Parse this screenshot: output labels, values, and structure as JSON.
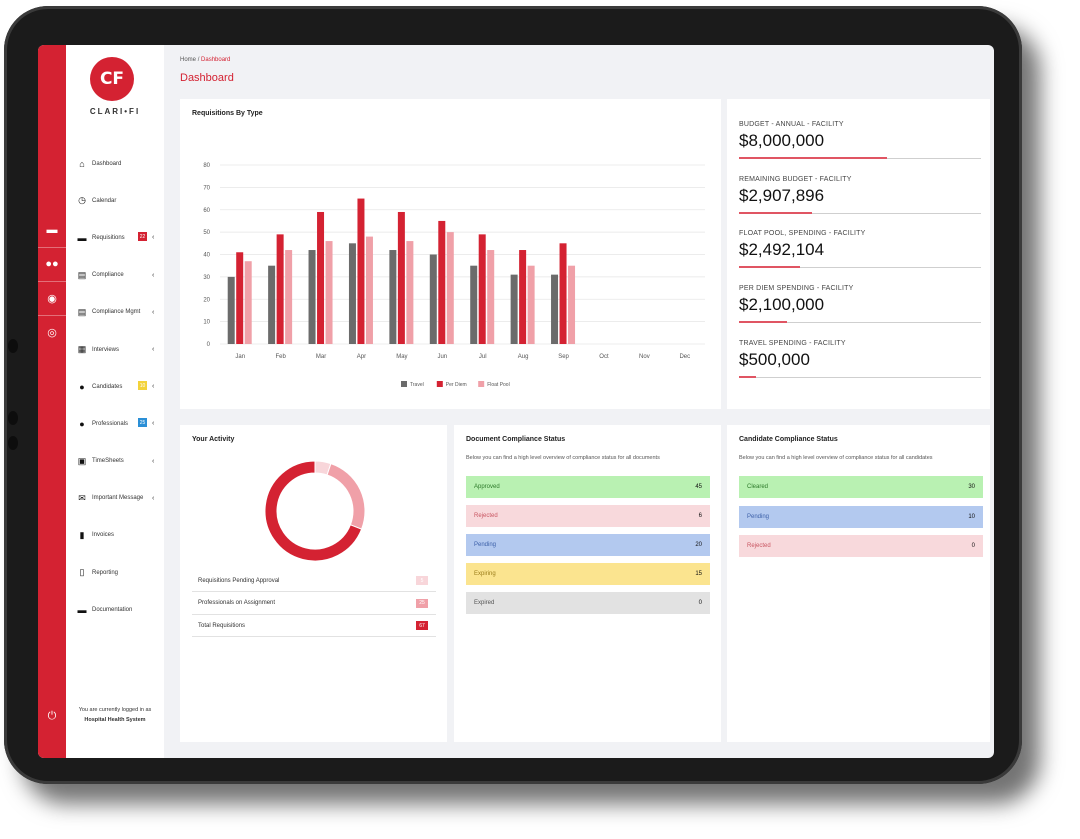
{
  "app": {
    "logo_text": "CLARI•FI",
    "logo_mark": "CF"
  },
  "breadcrumb": {
    "home": "Home",
    "separator": "/",
    "current": "Dashboard"
  },
  "page_title": "Dashboard",
  "sidebar": {
    "items": [
      {
        "label": "Dashboard",
        "icon": "home-icon",
        "glyph": "⌂"
      },
      {
        "label": "Calendar",
        "icon": "clock-icon",
        "glyph": "◷"
      },
      {
        "label": "Requisitions",
        "icon": "bed-icon",
        "glyph": "▬",
        "badge": "22",
        "badge_color": "#d42232",
        "chevron": "‹"
      },
      {
        "label": "Compliance",
        "icon": "id-card-icon",
        "glyph": "▤",
        "chevron": "‹"
      },
      {
        "label": "Compliance Mgmt",
        "icon": "id-card-icon",
        "glyph": "▤",
        "chevron": "‹"
      },
      {
        "label": "Interviews",
        "icon": "calendar-icon",
        "glyph": "▦",
        "chevron": "‹"
      },
      {
        "label": "Candidates",
        "icon": "user-icon",
        "glyph": "●",
        "badge": "10",
        "badge_color": "#f3d33b",
        "chevron": "‹"
      },
      {
        "label": "Professionals",
        "icon": "users-icon",
        "glyph": "●",
        "badge": "25",
        "badge_color": "#2b8fd6",
        "chevron": "‹"
      },
      {
        "label": "TimeSheets",
        "icon": "briefcase-icon",
        "glyph": "▣",
        "chevron": "‹"
      },
      {
        "label": "Important Message",
        "icon": "envelope-icon",
        "glyph": "✉",
        "chevron": "‹"
      },
      {
        "label": "Invoices",
        "icon": "file-icon",
        "glyph": "▮"
      },
      {
        "label": "Reporting",
        "icon": "document-icon",
        "glyph": "▯"
      },
      {
        "label": "Documentation",
        "icon": "folder-icon",
        "glyph": "▬"
      }
    ],
    "login_note": "You are currently logged in as",
    "login_user": "Hospital Health System"
  },
  "rail": {
    "icons": [
      "bed-icon",
      "users-icon",
      "user-circle-icon",
      "eye-icon",
      "power-icon"
    ]
  },
  "requisitions_card": {
    "title": "Requisitions By Type"
  },
  "chart_data": {
    "type": "bar",
    "title": "Requisitions By Type",
    "categories": [
      "Jan",
      "Feb",
      "Mar",
      "Apr",
      "May",
      "Jun",
      "Jul",
      "Aug",
      "Sep",
      "Oct",
      "Nov",
      "Dec"
    ],
    "series": [
      {
        "name": "Travel",
        "color": "#6b6b6b",
        "values": [
          30,
          35,
          42,
          45,
          42,
          40,
          35,
          31,
          31,
          null,
          null,
          null
        ]
      },
      {
        "name": "Per Diem",
        "color": "#d42232",
        "values": [
          41,
          49,
          59,
          65,
          59,
          55,
          49,
          42,
          45,
          null,
          null,
          null
        ]
      },
      {
        "name": "Float Pool",
        "color": "#f0a0a8",
        "values": [
          37,
          42,
          46,
          48,
          46,
          50,
          42,
          35,
          35,
          null,
          null,
          null
        ]
      }
    ],
    "yticks": [
      0,
      10,
      20,
      30,
      40,
      50,
      60,
      70,
      80
    ],
    "ylim": [
      0,
      80
    ],
    "grid": true,
    "legend": "bottom"
  },
  "budget": [
    {
      "label": "BUDGET - ANNUAL - FACILITY",
      "value": "$8,000,000",
      "progress": 0.61
    },
    {
      "label": "REMAINING BUDGET - FACILITY",
      "value": "$2,907,896",
      "progress": 0.3
    },
    {
      "label": "FLOAT POOL, SPENDING - FACILITY",
      "value": "$2,492,104",
      "progress": 0.25
    },
    {
      "label": "PER DIEM SPENDING - FACILITY",
      "value": "$2,100,000",
      "progress": 0.2
    },
    {
      "label": "TRAVEL SPENDING - FACILITY",
      "value": "$500,000",
      "progress": 0.07
    }
  ],
  "activity": {
    "title": "Your Activity",
    "donut": [
      {
        "label": "Requisitions Pending Approval",
        "value": 5,
        "color": "#f8d6da"
      },
      {
        "label": "Professionals on Assignment",
        "value": 25,
        "color": "#f0a0a8"
      },
      {
        "label": "Total Requisitions",
        "value": 67,
        "color": "#d42232"
      }
    ],
    "rows": [
      {
        "label": "Requisitions Pending Approval",
        "count": "5",
        "color": "#f8d6da"
      },
      {
        "label": "Professionals on Assignment",
        "count": "25",
        "color": "#f0a0a8"
      },
      {
        "label": "Total Requisitions",
        "count": "67",
        "color": "#d42232"
      }
    ]
  },
  "document_compliance": {
    "title": "Document Compliance Status",
    "subtitle": "Below you can find a high level overview of compliance status for all documents",
    "rows": [
      {
        "label": "Approved",
        "count": "45",
        "bg": "#b9f1b2",
        "fg": "#2d7a2a"
      },
      {
        "label": "Rejected",
        "count": "6",
        "bg": "#f8d9dc",
        "fg": "#c95561"
      },
      {
        "label": "Pending",
        "count": "20",
        "bg": "#b3c9ef",
        "fg": "#3b5fa8"
      },
      {
        "label": "Expiring",
        "count": "15",
        "bg": "#fbe48f",
        "fg": "#9b7d1a"
      },
      {
        "label": "Expired",
        "count": "0",
        "bg": "#e2e2e2",
        "fg": "#555555"
      }
    ]
  },
  "candidate_compliance": {
    "title": "Candidate Compliance Status",
    "subtitle": "Below you can find a high level overview of compliance status for all candidates",
    "rows": [
      {
        "label": "Cleared",
        "count": "30",
        "bg": "#b9f1b2",
        "fg": "#2d7a2a"
      },
      {
        "label": "Pending",
        "count": "10",
        "bg": "#b3c9ef",
        "fg": "#3b5fa8"
      },
      {
        "label": "Rejected",
        "count": "0",
        "bg": "#f8d9dc",
        "fg": "#c95561"
      }
    ]
  }
}
